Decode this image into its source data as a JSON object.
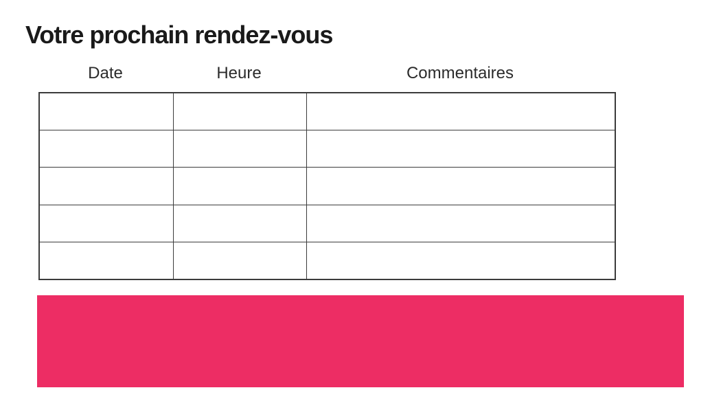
{
  "page": {
    "title": "Votre prochain rendez-vous",
    "background": "#ffffff"
  },
  "table": {
    "columns": [
      {
        "label": "Date"
      },
      {
        "label": "Heure"
      },
      {
        "label": "Commentaires"
      }
    ],
    "rows": [
      [
        "",
        "",
        ""
      ],
      [
        "",
        "",
        ""
      ],
      [
        "",
        "",
        ""
      ],
      [
        "",
        "",
        ""
      ],
      [
        "",
        "",
        ""
      ]
    ],
    "border_color": "#3b3b3b"
  },
  "banner": {
    "color": "#ED2D64"
  },
  "colors": {
    "title_text": "#1a1a1a",
    "header_text": "#2b2b2b",
    "accent_pink": "#ED2D64"
  }
}
